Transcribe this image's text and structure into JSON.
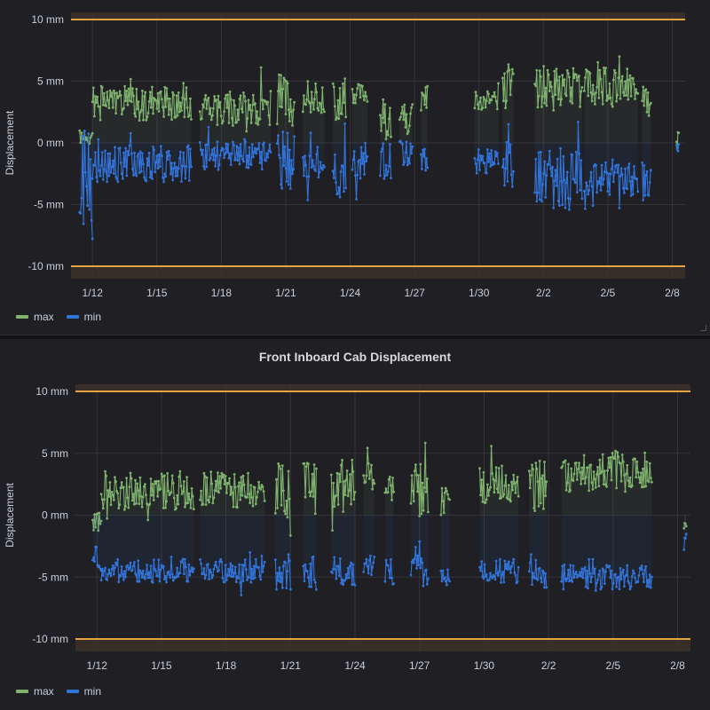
{
  "colors": {
    "max": "#7eb26d",
    "min": "#3274d9",
    "threshold": "#e5a441",
    "grid": "#34343a",
    "text": "#c7d0d9"
  },
  "chart_data": [
    {
      "type": "line",
      "title": "",
      "ylabel": "Displacement",
      "ylim": [
        -10,
        10
      ],
      "y_ticks": [
        "10 mm",
        "5 mm",
        "0 mm",
        "-5 mm",
        "-10 mm"
      ],
      "y_tick_values": [
        10,
        5,
        0,
        -5,
        -10
      ],
      "x_ticks": [
        "1/12",
        "1/15",
        "1/18",
        "1/21",
        "1/24",
        "1/27",
        "1/30",
        "2/2",
        "2/5",
        "2/8"
      ],
      "x_tick_values": [
        12,
        15,
        18,
        21,
        24,
        27,
        30,
        33,
        36,
        39
      ],
      "xlim": [
        11.0,
        39.6
      ],
      "thresholds": [
        10,
        -10
      ],
      "legend": "bottom-left",
      "series": [
        {
          "name": "max",
          "color": "#7eb26d",
          "segments": [
            {
              "start": 11.4,
              "end": 12.0,
              "mean": 0.5,
              "amp": 0.6,
              "seed": 11
            },
            {
              "start": 12.0,
              "end": 16.6,
              "mean": 3.2,
              "amp": 1.4,
              "seed": 1
            },
            {
              "start": 17.0,
              "end": 20.3,
              "mean": 2.9,
              "amp": 1.5,
              "seed": 2
            },
            {
              "start": 20.6,
              "end": 21.4,
              "mean": 3.5,
              "amp": 2.2,
              "seed": 3
            },
            {
              "start": 21.8,
              "end": 22.8,
              "mean": 3.6,
              "amp": 1.2,
              "seed": 4
            },
            {
              "start": 23.2,
              "end": 23.8,
              "mean": 3.4,
              "amp": 1.8,
              "seed": 5
            },
            {
              "start": 24.1,
              "end": 24.8,
              "mean": 4.0,
              "amp": 0.8,
              "seed": 6
            },
            {
              "start": 25.4,
              "end": 25.9,
              "mean": 2.0,
              "amp": 2.0,
              "seed": 7
            },
            {
              "start": 26.3,
              "end": 26.9,
              "mean": 2.2,
              "amp": 1.5,
              "seed": 8
            },
            {
              "start": 27.3,
              "end": 27.6,
              "mean": 3.5,
              "amp": 1.6,
              "seed": 9
            },
            {
              "start": 29.8,
              "end": 30.9,
              "mean": 3.5,
              "amp": 0.8,
              "seed": 10
            },
            {
              "start": 31.1,
              "end": 31.6,
              "mean": 4.2,
              "amp": 2.2,
              "seed": 12
            },
            {
              "start": 32.6,
              "end": 34.8,
              "mean": 4.5,
              "amp": 1.8,
              "seed": 13
            },
            {
              "start": 34.9,
              "end": 37.4,
              "mean": 4.5,
              "amp": 1.6,
              "seed": 14
            },
            {
              "start": 37.6,
              "end": 38.0,
              "mean": 3.8,
              "amp": 0.8,
              "seed": 15
            },
            {
              "start": 39.2,
              "end": 39.3,
              "mean": 0.5,
              "amp": 0.5,
              "seed": 16
            }
          ]
        },
        {
          "name": "min",
          "color": "#3274d9",
          "segments": [
            {
              "start": 11.4,
              "end": 12.0,
              "mean": -3.5,
              "amp": 4.5,
              "seed": 21
            },
            {
              "start": 12.0,
              "end": 16.6,
              "mean": -1.7,
              "amp": 1.5,
              "seed": 22
            },
            {
              "start": 17.0,
              "end": 20.3,
              "mean": -1.0,
              "amp": 1.2,
              "seed": 23
            },
            {
              "start": 20.6,
              "end": 21.4,
              "mean": -1.4,
              "amp": 2.5,
              "seed": 24
            },
            {
              "start": 21.8,
              "end": 22.8,
              "mean": -1.5,
              "amp": 1.5,
              "seed": 25
            },
            {
              "start": 23.2,
              "end": 23.8,
              "mean": -2.0,
              "amp": 2.5,
              "seed": 26
            },
            {
              "start": 24.1,
              "end": 24.8,
              "mean": -1.5,
              "amp": 1.5,
              "seed": 27
            },
            {
              "start": 25.4,
              "end": 25.9,
              "mean": -1.5,
              "amp": 1.5,
              "seed": 28
            },
            {
              "start": 26.3,
              "end": 26.9,
              "mean": -0.8,
              "amp": 1.0,
              "seed": 29
            },
            {
              "start": 27.3,
              "end": 27.6,
              "mean": -1.5,
              "amp": 1.0,
              "seed": 30
            },
            {
              "start": 29.8,
              "end": 30.9,
              "mean": -1.5,
              "amp": 1.0,
              "seed": 31
            },
            {
              "start": 31.1,
              "end": 31.6,
              "mean": -1.8,
              "amp": 2.0,
              "seed": 32
            },
            {
              "start": 32.6,
              "end": 34.8,
              "mean": -3.0,
              "amp": 2.5,
              "seed": 33
            },
            {
              "start": 34.9,
              "end": 37.4,
              "mean": -2.8,
              "amp": 1.5,
              "seed": 34
            },
            {
              "start": 37.6,
              "end": 38.0,
              "mean": -3.0,
              "amp": 1.5,
              "seed": 35
            },
            {
              "start": 39.2,
              "end": 39.3,
              "mean": -0.5,
              "amp": 0.5,
              "seed": 36
            }
          ]
        }
      ]
    },
    {
      "type": "line",
      "title": "Front Inboard Cab Displacement",
      "ylabel": "Displacement",
      "ylim": [
        -10,
        10
      ],
      "y_ticks": [
        "10 mm",
        "5 mm",
        "0 mm",
        "-5 mm",
        "-10 mm"
      ],
      "y_tick_values": [
        10,
        5,
        0,
        -5,
        -10
      ],
      "x_ticks": [
        "1/12",
        "1/15",
        "1/18",
        "1/21",
        "1/24",
        "1/27",
        "1/30",
        "2/2",
        "2/5",
        "2/8"
      ],
      "x_tick_values": [
        12,
        15,
        18,
        21,
        24,
        27,
        30,
        33,
        36,
        39
      ],
      "xlim": [
        11.0,
        39.6
      ],
      "thresholds": [
        10,
        -10
      ],
      "legend": "bottom-left",
      "series": [
        {
          "name": "max",
          "color": "#7eb26d",
          "segments": [
            {
              "start": 11.8,
              "end": 12.2,
              "mean": -0.5,
              "amp": 0.8,
              "seed": 41
            },
            {
              "start": 12.2,
              "end": 16.5,
              "mean": 2.0,
              "amp": 1.6,
              "seed": 42
            },
            {
              "start": 16.8,
              "end": 19.8,
              "mean": 2.0,
              "amp": 1.5,
              "seed": 43
            },
            {
              "start": 20.3,
              "end": 21.0,
              "mean": 2.0,
              "amp": 2.2,
              "seed": 44
            },
            {
              "start": 21.6,
              "end": 22.2,
              "mean": 2.5,
              "amp": 2.0,
              "seed": 45
            },
            {
              "start": 22.9,
              "end": 24.0,
              "mean": 2.0,
              "amp": 2.5,
              "seed": 46
            },
            {
              "start": 24.4,
              "end": 24.9,
              "mean": 3.0,
              "amp": 1.2,
              "seed": 47
            },
            {
              "start": 25.4,
              "end": 25.8,
              "mean": 2.0,
              "amp": 1.2,
              "seed": 48
            },
            {
              "start": 26.6,
              "end": 27.4,
              "mean": 2.0,
              "amp": 2.2,
              "seed": 49
            },
            {
              "start": 28.0,
              "end": 28.4,
              "mean": 1.0,
              "amp": 1.2,
              "seed": 50
            },
            {
              "start": 29.8,
              "end": 31.6,
              "mean": 2.5,
              "amp": 1.5,
              "seed": 51
            },
            {
              "start": 32.1,
              "end": 32.9,
              "mean": 2.5,
              "amp": 2.0,
              "seed": 52
            },
            {
              "start": 33.6,
              "end": 37.8,
              "mean": 3.5,
              "amp": 1.6,
              "seed": 53
            },
            {
              "start": 39.3,
              "end": 39.4,
              "mean": -1.0,
              "amp": 0.5,
              "seed": 54
            }
          ]
        },
        {
          "name": "min",
          "color": "#3274d9",
          "segments": [
            {
              "start": 11.8,
              "end": 12.2,
              "mean": -3.0,
              "amp": 1.5,
              "seed": 61
            },
            {
              "start": 12.2,
              "end": 16.5,
              "mean": -4.5,
              "amp": 1.0,
              "seed": 62
            },
            {
              "start": 16.8,
              "end": 19.8,
              "mean": -4.5,
              "amp": 1.0,
              "seed": 63
            },
            {
              "start": 20.3,
              "end": 21.0,
              "mean": -4.5,
              "amp": 1.5,
              "seed": 64
            },
            {
              "start": 21.6,
              "end": 22.2,
              "mean": -4.5,
              "amp": 1.5,
              "seed": 65
            },
            {
              "start": 22.9,
              "end": 24.0,
              "mean": -4.5,
              "amp": 1.2,
              "seed": 66
            },
            {
              "start": 24.4,
              "end": 24.9,
              "mean": -4.2,
              "amp": 1.0,
              "seed": 67
            },
            {
              "start": 25.4,
              "end": 25.8,
              "mean": -4.5,
              "amp": 1.2,
              "seed": 68
            },
            {
              "start": 26.6,
              "end": 27.4,
              "mean": -4.5,
              "amp": 1.5,
              "seed": 69
            },
            {
              "start": 28.0,
              "end": 28.4,
              "mean": -5.0,
              "amp": 0.8,
              "seed": 70
            },
            {
              "start": 29.8,
              "end": 31.6,
              "mean": -4.5,
              "amp": 1.0,
              "seed": 71
            },
            {
              "start": 32.1,
              "end": 32.9,
              "mean": -4.5,
              "amp": 1.5,
              "seed": 72
            },
            {
              "start": 33.6,
              "end": 37.8,
              "mean": -5.0,
              "amp": 1.0,
              "seed": 73
            },
            {
              "start": 39.3,
              "end": 39.4,
              "mean": -1.8,
              "amp": 0.6,
              "seed": 74
            }
          ]
        }
      ]
    }
  ]
}
